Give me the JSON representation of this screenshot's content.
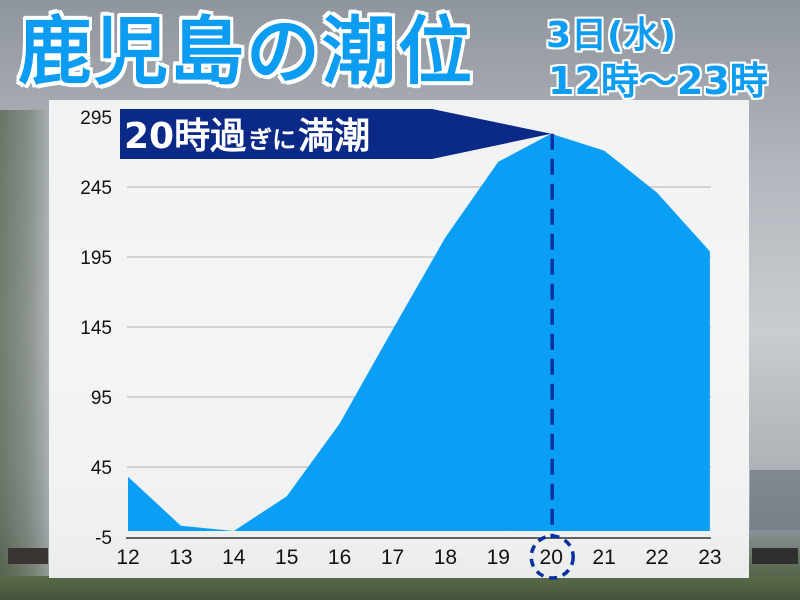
{
  "header": {
    "title": "鹿児島の潮位",
    "date_label": "3日(水)",
    "time_range_label": "12時〜23時"
  },
  "annotation": {
    "banner_text_big1": "20時過",
    "banner_text_small": "ぎに",
    "banner_text_big2": "満潮",
    "banner_full_text": "20時過ぎに満潮",
    "highlight_hour": "20"
  },
  "colors": {
    "area_fill": "#0a9ff5",
    "title_blue": "#0c9cf2",
    "banner_navy": "#0b2a88",
    "dash_line": "#0a2f9e",
    "grid": "#bfbfbf",
    "axis": "#333333"
  },
  "chart_data": {
    "type": "area",
    "title": "鹿児島の潮位",
    "subtitle": "3日(水) 12時〜23時",
    "xlabel": "",
    "ylabel": "",
    "categories": [
      "12",
      "13",
      "14",
      "15",
      "16",
      "17",
      "18",
      "19",
      "20",
      "21",
      "22",
      "23"
    ],
    "values": [
      38,
      3,
      -1,
      24,
      76,
      143,
      209,
      263,
      283,
      271,
      241,
      199
    ],
    "y_ticks": [
      "295",
      "245",
      "195",
      "145",
      "95",
      "45",
      "-5"
    ],
    "ylim": [
      -5,
      295
    ],
    "grid": true,
    "legend": null,
    "annotations": [
      {
        "text": "20時過ぎに満潮",
        "x": "20",
        "type": "dashed vertical line at high tide"
      }
    ]
  }
}
